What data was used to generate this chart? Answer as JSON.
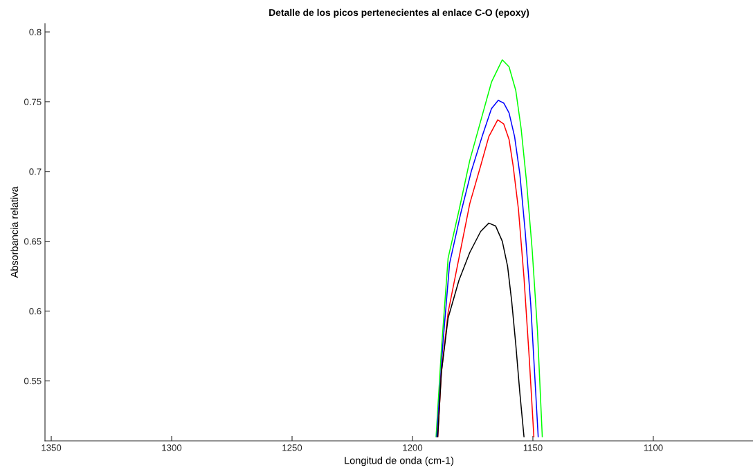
{
  "chart_data": {
    "type": "line",
    "title": "Detalle de los picos pertenecientes al enlace C-O (epoxy)",
    "xlabel": "Longitud de onda (cm-1)",
    "ylabel": "Absorbancia relativa",
    "xlim": [
      1352.6,
      1058.6
    ],
    "ylim": [
      0.507,
      0.806
    ],
    "xticks": [
      1350,
      1300,
      1250,
      1200,
      1150,
      1100
    ],
    "yticks": [
      0.55,
      0.6,
      0.65,
      0.7,
      0.75,
      0.8
    ],
    "grid": false,
    "legend": false,
    "marker": "none",
    "line_style": "solid",
    "series": [
      {
        "color": "#00ff00",
        "x": [
          1190.2,
          1188.0,
          1185.2,
          1180.7,
          1176.2,
          1171.7,
          1167.2,
          1162.7,
          1159.9,
          1157.1,
          1154.9,
          1152.6,
          1150.3,
          1148.1,
          1146.1
        ],
        "values": [
          0.51,
          0.572,
          0.638,
          0.672,
          0.708,
          0.736,
          0.764,
          0.78,
          0.775,
          0.758,
          0.731,
          0.692,
          0.644,
          0.586,
          0.51
        ]
      },
      {
        "color": "#0000ff",
        "x": [
          1189.9,
          1187.4,
          1184.6,
          1180.1,
          1175.6,
          1171.1,
          1167.2,
          1164.4,
          1162.1,
          1159.9,
          1157.6,
          1155.4,
          1153.2,
          1150.9,
          1147.8
        ],
        "values": [
          0.51,
          0.576,
          0.634,
          0.669,
          0.7,
          0.725,
          0.745,
          0.751,
          0.749,
          0.742,
          0.725,
          0.698,
          0.657,
          0.605,
          0.51
        ]
      },
      {
        "color": "#ff0000",
        "x": [
          1189.5,
          1188.0,
          1185.2,
          1180.7,
          1176.2,
          1171.7,
          1168.3,
          1164.6,
          1162.1,
          1159.9,
          1158.2,
          1156.0,
          1153.7,
          1151.5,
          1149.6
        ],
        "values": [
          0.51,
          0.556,
          0.599,
          0.638,
          0.677,
          0.704,
          0.725,
          0.737,
          0.734,
          0.723,
          0.704,
          0.673,
          0.624,
          0.566,
          0.51
        ]
      },
      {
        "color": "#000000",
        "x": [
          1189.5,
          1188.0,
          1185.2,
          1180.7,
          1176.2,
          1171.7,
          1168.3,
          1165.5,
          1162.7,
          1160.5,
          1158.8,
          1157.1,
          1155.4,
          1153.7
        ],
        "values": [
          0.51,
          0.556,
          0.595,
          0.622,
          0.642,
          0.657,
          0.663,
          0.661,
          0.65,
          0.632,
          0.607,
          0.576,
          0.541,
          0.51
        ]
      }
    ]
  }
}
